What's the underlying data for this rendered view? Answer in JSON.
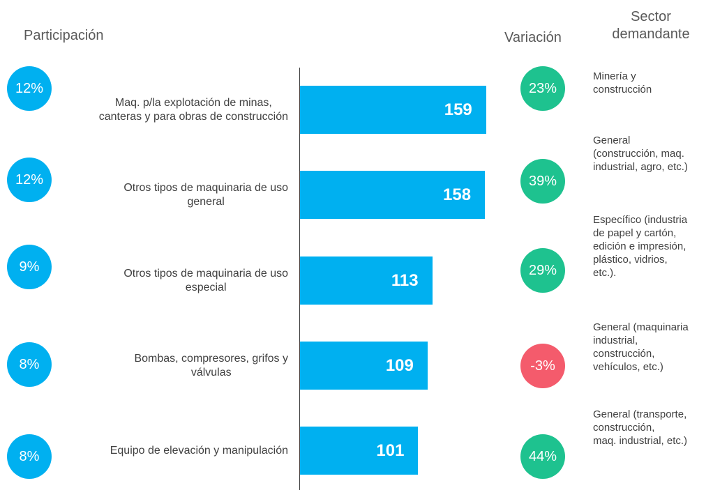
{
  "chart_data": {
    "type": "bar",
    "categories": [
      "Maq. p/la explotación de minas,\ncanteras y para obras de construcción",
      "Otros tipos de maquinaria de uso\ngeneral",
      "Otros tipos de maquinaria de uso\nespecial",
      "Bombas, compresores, grifos y\nválvulas",
      "Equipo de elevación y manipulación"
    ],
    "values": [
      159,
      158,
      113,
      109,
      101
    ],
    "color": "#00b0f0",
    "xlim": [
      0,
      180
    ],
    "participation": {
      "title": "Participación",
      "values": [
        12,
        12,
        9,
        8,
        8
      ],
      "value_labels": [
        "12%",
        "12%",
        "9%",
        "8%",
        "8%"
      ],
      "color": "#00b0f0"
    },
    "variation": {
      "title": "Variación",
      "values": [
        23,
        39,
        29,
        -3,
        44
      ],
      "value_labels": [
        "23%",
        "39%",
        "29%",
        "-3%",
        "44%"
      ],
      "colors": [
        "#1ec28f",
        "#1ec28f",
        "#1ec28f",
        "#f45b6c",
        "#1ec28f"
      ]
    },
    "sector": {
      "title": "Sector\ndemandante",
      "values": [
        "Minería y\nconstrucción",
        "General\n(construcción, maq.\nindustrial, agro, etc.)",
        "Específico (industria\nde papel y cartón,\nedición e impresión,\nplástico, vidrios,\netc.).",
        "General (maquinaria\nindustrial,\nconstrucción,\nvehículos, etc.)",
        "General (transporte,\nconstrucción,\nmaq. industrial, etc.)"
      ]
    }
  }
}
